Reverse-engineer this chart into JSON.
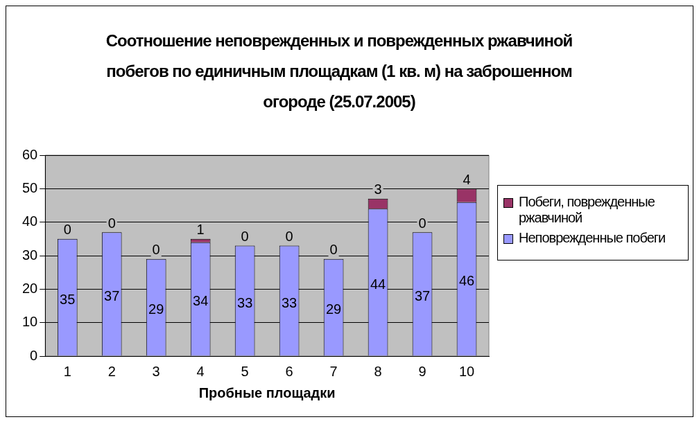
{
  "chart_data": {
    "type": "bar",
    "title": "Соотношение неповрежденных и поврежденных ржавчиной побегов по единичным площадкам (1 кв. м) на заброшенном огороде (25.07.2005)",
    "xlabel": "Пробные площадки",
    "categories": [
      "1",
      "2",
      "3",
      "4",
      "5",
      "6",
      "7",
      "8",
      "9",
      "10"
    ],
    "stacked": true,
    "series": [
      {
        "name": "Неповрежденные побеги",
        "color": "#9999ff",
        "values": [
          35,
          37,
          29,
          34,
          33,
          33,
          29,
          44,
          37,
          46
        ]
      },
      {
        "name": "Побеги, поврежденные ржавчиной",
        "color": "#993366",
        "values": [
          0,
          0,
          0,
          1,
          0,
          0,
          0,
          3,
          0,
          4
        ]
      }
    ],
    "ylim": [
      0,
      60
    ],
    "yticks": [
      0,
      10,
      20,
      30,
      40,
      50,
      60
    ],
    "grid": "y",
    "legend": "right",
    "data_labels": true
  }
}
